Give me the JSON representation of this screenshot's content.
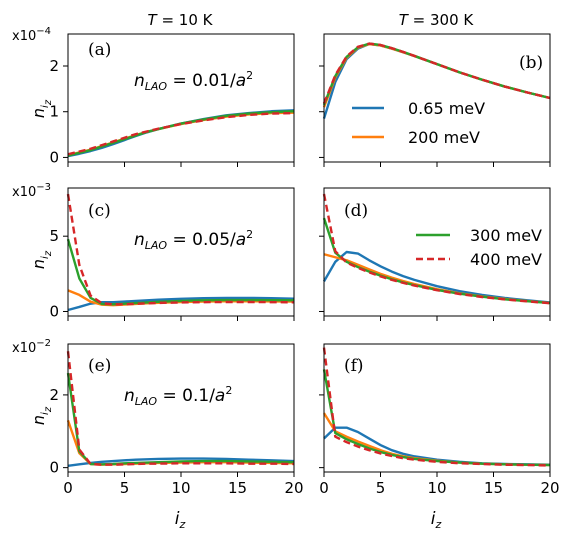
{
  "figure": {
    "column_titles": [
      {
        "var": "T",
        "eq": " = ",
        "value": "10 K"
      },
      {
        "var": "T",
        "eq": " = ",
        "value": "300 K"
      }
    ],
    "row_scales": [
      "x10",
      "x10",
      "x10"
    ],
    "row_scale_exponents": [
      "−4",
      "−3",
      "−2"
    ],
    "ylabel_main": "n",
    "ylabel_sub": "i",
    "ylabel_subsub": "z",
    "xlabel_main": "i",
    "xlabel_sub": "z",
    "annotations": [
      {
        "n": "n",
        "sub": "LAO",
        "eq": " = ",
        "value": "0.01/",
        "a": "a",
        "exp": "2"
      },
      {
        "n": "n",
        "sub": "LAO",
        "eq": " = ",
        "value": "0.05/",
        "a": "a",
        "exp": "2"
      },
      {
        "n": "n",
        "sub": "LAO",
        "eq": " = ",
        "value": "0.1/",
        "a": "a",
        "exp": "2"
      }
    ],
    "panel_labels": [
      "(a)",
      "(b)",
      "(c)",
      "(d)",
      "(e)",
      "(f)"
    ],
    "legend_top": [
      "0.65 meV",
      "200 meV"
    ],
    "legend_bottom": [
      "300 meV",
      "400 meV"
    ]
  },
  "chart_data": [
    {
      "type": "line",
      "panel": "(a)",
      "row": 0,
      "col": 0,
      "x": [
        0,
        1,
        2,
        3,
        4,
        5,
        6,
        7,
        8,
        10,
        12,
        14,
        16,
        18,
        20
      ],
      "xlim": [
        0,
        20
      ],
      "ylim": [
        -0.1,
        2.7
      ],
      "yticks": [
        0,
        1,
        2
      ],
      "xticks": [
        0,
        5,
        10,
        15,
        20
      ],
      "series": [
        {
          "name": "0.65 meV",
          "color": "#1f77b4",
          "dashed": false,
          "values": [
            0.03,
            0.08,
            0.14,
            0.21,
            0.29,
            0.38,
            0.47,
            0.55,
            0.62,
            0.74,
            0.84,
            0.92,
            0.97,
            1.01,
            1.03
          ]
        },
        {
          "name": "200 meV",
          "color": "#ff7f0e",
          "dashed": false,
          "values": [
            0.05,
            0.11,
            0.17,
            0.25,
            0.33,
            0.41,
            0.49,
            0.56,
            0.62,
            0.73,
            0.82,
            0.89,
            0.94,
            0.97,
            0.98
          ]
        },
        {
          "name": "300 meV",
          "color": "#2ca02c",
          "dashed": false,
          "values": [
            0.04,
            0.1,
            0.16,
            0.24,
            0.32,
            0.4,
            0.48,
            0.56,
            0.62,
            0.74,
            0.83,
            0.91,
            0.96,
            0.99,
            1.01
          ]
        },
        {
          "name": "400 meV",
          "color": "#d62728",
          "dashed": true,
          "values": [
            0.07,
            0.13,
            0.19,
            0.27,
            0.35,
            0.43,
            0.51,
            0.57,
            0.63,
            0.73,
            0.81,
            0.88,
            0.93,
            0.96,
            0.97
          ]
        }
      ]
    },
    {
      "type": "line",
      "panel": "(b)",
      "row": 0,
      "col": 1,
      "x": [
        0,
        1,
        2,
        3,
        4,
        5,
        6,
        7,
        8,
        10,
        12,
        14,
        16,
        18,
        20
      ],
      "xlim": [
        0,
        20
      ],
      "ylim": [
        -0.1,
        2.7
      ],
      "yticks": [
        0,
        1,
        2
      ],
      "xticks": [
        0,
        5,
        10,
        15,
        20
      ],
      "series": [
        {
          "name": "0.65 meV",
          "color": "#1f77b4",
          "dashed": false,
          "values": [
            0.85,
            1.65,
            2.15,
            2.38,
            2.48,
            2.45,
            2.38,
            2.3,
            2.22,
            2.04,
            1.86,
            1.7,
            1.55,
            1.42,
            1.3
          ]
        },
        {
          "name": "200 meV",
          "color": "#ff7f0e",
          "dashed": false,
          "values": [
            1.1,
            1.75,
            2.18,
            2.4,
            2.48,
            2.45,
            2.38,
            2.3,
            2.22,
            2.04,
            1.86,
            1.7,
            1.55,
            1.42,
            1.3
          ]
        },
        {
          "name": "300 meV",
          "color": "#2ca02c",
          "dashed": false,
          "values": [
            1.15,
            1.78,
            2.2,
            2.41,
            2.49,
            2.46,
            2.39,
            2.31,
            2.22,
            2.04,
            1.86,
            1.7,
            1.55,
            1.42,
            1.3
          ]
        },
        {
          "name": "400 meV",
          "color": "#d62728",
          "dashed": true,
          "values": [
            1.18,
            1.8,
            2.21,
            2.42,
            2.49,
            2.46,
            2.39,
            2.31,
            2.22,
            2.04,
            1.86,
            1.7,
            1.55,
            1.42,
            1.3
          ]
        }
      ]
    },
    {
      "type": "line",
      "panel": "(c)",
      "row": 1,
      "col": 0,
      "x": [
        0,
        1,
        2,
        3,
        4,
        5,
        6,
        7,
        8,
        10,
        12,
        14,
        16,
        18,
        20
      ],
      "xlim": [
        0,
        20
      ],
      "ylim": [
        -0.3,
        8.2
      ],
      "yticks": [
        0,
        5
      ],
      "xticks": [
        0,
        5,
        10,
        15,
        20
      ],
      "series": [
        {
          "name": "0.65 meV",
          "color": "#1f77b4",
          "dashed": false,
          "values": [
            0.1,
            0.3,
            0.52,
            0.62,
            0.62,
            0.66,
            0.7,
            0.74,
            0.78,
            0.84,
            0.88,
            0.9,
            0.9,
            0.88,
            0.85
          ]
        },
        {
          "name": "200 meV",
          "color": "#ff7f0e",
          "dashed": false,
          "values": [
            1.4,
            1.1,
            0.65,
            0.45,
            0.42,
            0.46,
            0.5,
            0.54,
            0.58,
            0.63,
            0.66,
            0.68,
            0.68,
            0.67,
            0.66
          ]
        },
        {
          "name": "300 meV",
          "color": "#2ca02c",
          "dashed": false,
          "values": [
            4.8,
            2.2,
            0.9,
            0.5,
            0.48,
            0.52,
            0.56,
            0.6,
            0.64,
            0.7,
            0.74,
            0.76,
            0.76,
            0.75,
            0.74
          ]
        },
        {
          "name": "400 meV",
          "color": "#d62728",
          "dashed": true,
          "values": [
            7.8,
            3.1,
            1.05,
            0.55,
            0.47,
            0.48,
            0.51,
            0.54,
            0.57,
            0.6,
            0.62,
            0.63,
            0.63,
            0.62,
            0.61
          ]
        }
      ]
    },
    {
      "type": "line",
      "panel": "(d)",
      "row": 1,
      "col": 1,
      "x": [
        0,
        1,
        2,
        3,
        4,
        5,
        6,
        7,
        8,
        10,
        12,
        14,
        16,
        18,
        20
      ],
      "xlim": [
        0,
        20
      ],
      "ylim": [
        -0.3,
        8.2
      ],
      "yticks": [
        0,
        5
      ],
      "xticks": [
        0,
        5,
        10,
        15,
        20
      ],
      "series": [
        {
          "name": "0.65 meV",
          "color": "#1f77b4",
          "dashed": false,
          "values": [
            2.0,
            3.3,
            3.95,
            3.85,
            3.4,
            3.0,
            2.65,
            2.35,
            2.1,
            1.68,
            1.35,
            1.1,
            0.9,
            0.74,
            0.6
          ]
        },
        {
          "name": "200 meV",
          "color": "#ff7f0e",
          "dashed": false,
          "values": [
            3.8,
            3.6,
            3.4,
            3.1,
            2.8,
            2.5,
            2.25,
            2.02,
            1.82,
            1.48,
            1.21,
            1.0,
            0.83,
            0.69,
            0.57
          ]
        },
        {
          "name": "300 meV",
          "color": "#2ca02c",
          "dashed": false,
          "values": [
            6.2,
            3.9,
            3.3,
            2.95,
            2.65,
            2.38,
            2.14,
            1.93,
            1.75,
            1.43,
            1.18,
            0.98,
            0.81,
            0.68,
            0.56
          ]
        },
        {
          "name": "400 meV",
          "color": "#d62728",
          "dashed": true,
          "values": [
            7.8,
            4.0,
            3.25,
            2.9,
            2.6,
            2.33,
            2.1,
            1.9,
            1.72,
            1.41,
            1.16,
            0.96,
            0.8,
            0.67,
            0.55
          ]
        }
      ]
    },
    {
      "type": "line",
      "panel": "(e)",
      "row": 2,
      "col": 0,
      "x": [
        0,
        1,
        2,
        3,
        4,
        5,
        6,
        7,
        8,
        10,
        12,
        14,
        16,
        18,
        20
      ],
      "xlim": [
        0,
        20
      ],
      "ylim": [
        -0.12,
        3.4
      ],
      "yticks": [
        0,
        2
      ],
      "xticks": [
        0,
        5,
        10,
        15,
        20
      ],
      "series": [
        {
          "name": "0.65 meV",
          "color": "#1f77b4",
          "dashed": false,
          "values": [
            0.05,
            0.09,
            0.13,
            0.16,
            0.18,
            0.2,
            0.22,
            0.23,
            0.24,
            0.25,
            0.25,
            0.24,
            0.22,
            0.2,
            0.18
          ]
        },
        {
          "name": "200 meV",
          "color": "#ff7f0e",
          "dashed": false,
          "values": [
            1.3,
            0.4,
            0.1,
            0.08,
            0.09,
            0.1,
            0.11,
            0.12,
            0.13,
            0.14,
            0.15,
            0.15,
            0.14,
            0.13,
            0.12
          ]
        },
        {
          "name": "300 meV",
          "color": "#2ca02c",
          "dashed": false,
          "values": [
            2.6,
            0.45,
            0.1,
            0.09,
            0.1,
            0.12,
            0.13,
            0.14,
            0.15,
            0.17,
            0.18,
            0.18,
            0.17,
            0.16,
            0.15
          ]
        },
        {
          "name": "400 meV",
          "color": "#d62728",
          "dashed": true,
          "values": [
            3.2,
            0.5,
            0.1,
            0.08,
            0.08,
            0.09,
            0.1,
            0.11,
            0.11,
            0.12,
            0.12,
            0.12,
            0.11,
            0.11,
            0.1
          ]
        }
      ]
    },
    {
      "type": "line",
      "panel": "(f)",
      "row": 2,
      "col": 1,
      "x": [
        0,
        1,
        2,
        3,
        4,
        5,
        6,
        7,
        8,
        10,
        12,
        14,
        16,
        18,
        20
      ],
      "xlim": [
        0,
        20
      ],
      "ylim": [
        -0.12,
        3.4
      ],
      "yticks": [
        0,
        2
      ],
      "xticks": [
        0,
        5,
        10,
        15,
        20
      ],
      "series": [
        {
          "name": "0.65 meV",
          "color": "#1f77b4",
          "dashed": false,
          "values": [
            0.8,
            1.1,
            1.1,
            0.98,
            0.8,
            0.62,
            0.48,
            0.38,
            0.31,
            0.22,
            0.16,
            0.12,
            0.1,
            0.09,
            0.08
          ]
        },
        {
          "name": "200 meV",
          "color": "#ff7f0e",
          "dashed": false,
          "values": [
            1.5,
            1.0,
            0.85,
            0.72,
            0.6,
            0.48,
            0.38,
            0.31,
            0.26,
            0.19,
            0.14,
            0.11,
            0.09,
            0.08,
            0.07
          ]
        },
        {
          "name": "300 meV",
          "color": "#2ca02c",
          "dashed": false,
          "values": [
            2.7,
            0.95,
            0.78,
            0.65,
            0.53,
            0.43,
            0.35,
            0.29,
            0.24,
            0.18,
            0.14,
            0.11,
            0.09,
            0.08,
            0.07
          ]
        },
        {
          "name": "400 meV",
          "color": "#d62728",
          "dashed": true,
          "values": [
            3.3,
            0.85,
            0.7,
            0.58,
            0.48,
            0.39,
            0.32,
            0.26,
            0.22,
            0.16,
            0.12,
            0.1,
            0.08,
            0.07,
            0.06
          ]
        }
      ]
    }
  ]
}
